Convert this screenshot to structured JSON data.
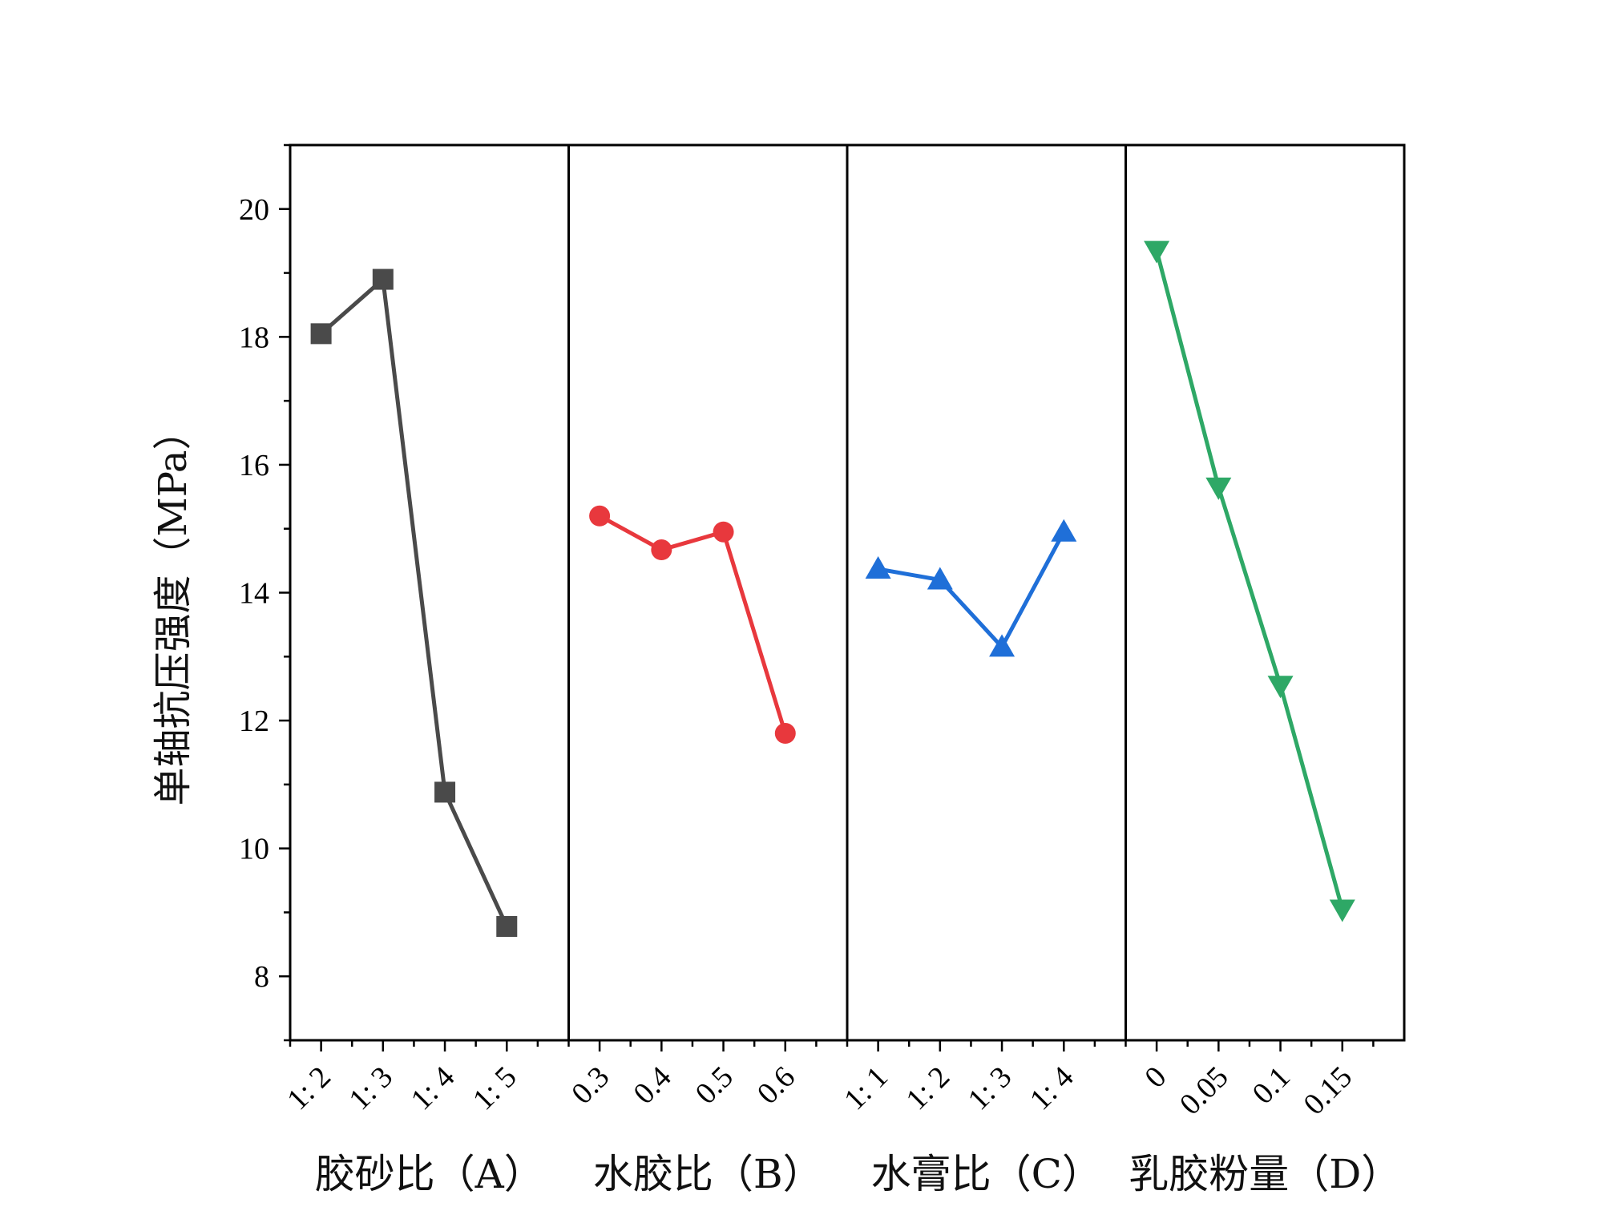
{
  "chart_data": {
    "type": "line",
    "ylabel": "单轴抗压强度（MPa）",
    "ylim": [
      7,
      21
    ],
    "yticks": [
      8,
      10,
      12,
      14,
      16,
      18,
      20
    ],
    "y_tick_labels": [
      "8",
      "10",
      "12",
      "14",
      "16",
      "18",
      "20"
    ],
    "grid": false,
    "panels": [
      {
        "xlabel": "胶砂比（A）",
        "categories": [
          "1: 2",
          "1: 3",
          "1: 4",
          "1: 5"
        ],
        "values": [
          18.05,
          18.9,
          10.88,
          8.78
        ],
        "color": "#4a4a4a",
        "marker": "square"
      },
      {
        "xlabel": "水胶比（B）",
        "categories": [
          "0.3",
          "0.4",
          "0.5",
          "0.6"
        ],
        "values": [
          15.2,
          14.67,
          14.95,
          11.8
        ],
        "color": "#e8383d",
        "marker": "circle"
      },
      {
        "xlabel": "水膏比（C）",
        "categories": [
          "1: 1",
          "1: 2",
          "1: 3",
          "1: 4"
        ],
        "values": [
          14.37,
          14.2,
          13.15,
          14.95
        ],
        "color": "#1f6fd8",
        "marker": "triangle-up"
      },
      {
        "xlabel": "乳胶粉量（D）",
        "categories": [
          "0",
          "0.05",
          "0.1",
          "0.15"
        ],
        "values": [
          19.35,
          15.65,
          12.55,
          9.05
        ],
        "color": "#2ea866",
        "marker": "triangle-down"
      }
    ]
  }
}
